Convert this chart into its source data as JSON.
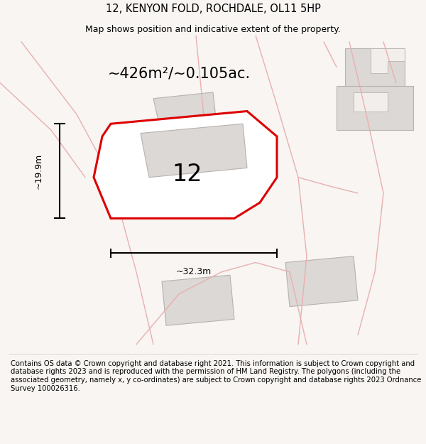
{
  "title": "12, KENYON FOLD, ROCHDALE, OL11 5HP",
  "subtitle": "Map shows position and indicative extent of the property.",
  "area_label": "~426m²/~0.105ac.",
  "number_label": "12",
  "dim_horizontal": "~32.3m",
  "dim_vertical": "~19.9m",
  "footer": "Contains OS data © Crown copyright and database right 2021. This information is subject to Crown copyright and database rights 2023 and is reproduced with the permission of HM Land Registry. The polygons (including the associated geometry, namely x, y co-ordinates) are subject to Crown copyright and database rights 2023 Ordnance Survey 100026316.",
  "bg_color": "#f8f5f2",
  "map_bg": "#f2eeeb",
  "plot_fill": "#ffffff",
  "plot_edge_color": "#dd0000",
  "nearby_fill": "#dbd8d5",
  "nearby_edge_color": "#b8b2ae",
  "road_color": "#e8b0b0",
  "title_fontsize": 10.5,
  "subtitle_fontsize": 9,
  "label_fontsize": 15,
  "number_fontsize": 24,
  "footer_fontsize": 7.2
}
